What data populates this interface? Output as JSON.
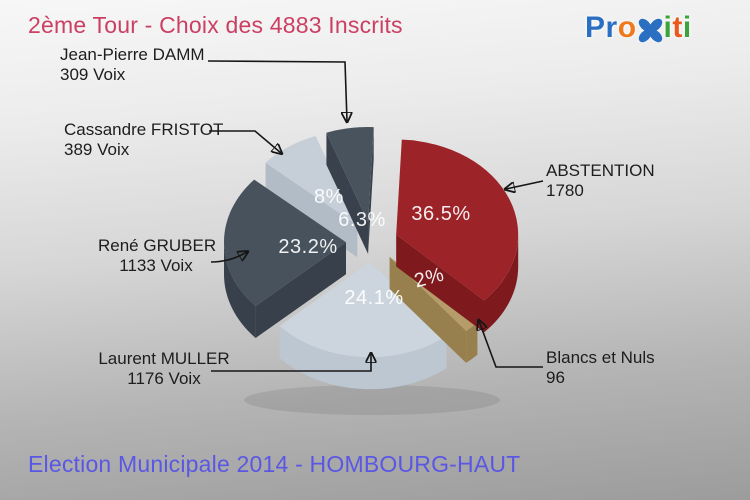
{
  "header": {
    "title": "2ème Tour - Choix des 4883 Inscrits"
  },
  "logo": {
    "alt": "Proxiti",
    "letters": [
      {
        "ch": "P",
        "color": "#2b6fc2"
      },
      {
        "ch": "r",
        "color": "#2b6fc2"
      },
      {
        "ch": "o",
        "color": "#f0791e"
      },
      {
        "icon": "x-flower",
        "color": "#2b6fc2"
      },
      {
        "ch": "i",
        "color": "#3aa33c"
      },
      {
        "ch": "t",
        "color": "#e85a1a"
      },
      {
        "ch": "i",
        "color": "#3aa33c"
      }
    ]
  },
  "footer": {
    "title": "Election Municipale 2014 - HOMBOURG-HAUT"
  },
  "chart_data": {
    "type": "pie",
    "style": "3d-exploded",
    "title": "2ème Tour - Choix des 4883 Inscrits",
    "total_inscrits": 4883,
    "legend_position": "callouts",
    "label_color": "rgba(255,255,255,0.92)",
    "slices": [
      {
        "label": "Jean-Pierre DAMM",
        "value": 309,
        "value_label": "309 Voix",
        "pct": 6.3,
        "pct_label": "6.3%",
        "color": "#48535d",
        "side_color": "#39424c"
      },
      {
        "label": "ABSTENTION",
        "value": 1780,
        "value_label": "1780",
        "pct": 36.5,
        "pct_label": "36.5%",
        "color": "#9c2327",
        "side_color": "#7e191d"
      },
      {
        "label": "Blancs et Nuls",
        "value": 96,
        "value_label": "96",
        "pct": 2,
        "pct_label": "2%",
        "color": "#b59c68",
        "side_color": "#97804e"
      },
      {
        "label": "Laurent MULLER",
        "value": 1176,
        "value_label": "1176 Voix",
        "pct": 24.1,
        "pct_label": "24.1%",
        "color": "#ccd5de",
        "side_color": "#bcc7d2"
      },
      {
        "label": "René GRUBER",
        "value": 1133,
        "value_label": "1133 Voix",
        "pct": 23.2,
        "pct_label": "23.2%",
        "color": "#47525c",
        "side_color": "#38414b"
      },
      {
        "label": "Cassandre FRISTOT",
        "value": 389,
        "value_label": "389 Voix",
        "pct": 8,
        "pct_label": "8%",
        "color": "#c6cfd8",
        "side_color": "#b2bcc7"
      }
    ]
  }
}
